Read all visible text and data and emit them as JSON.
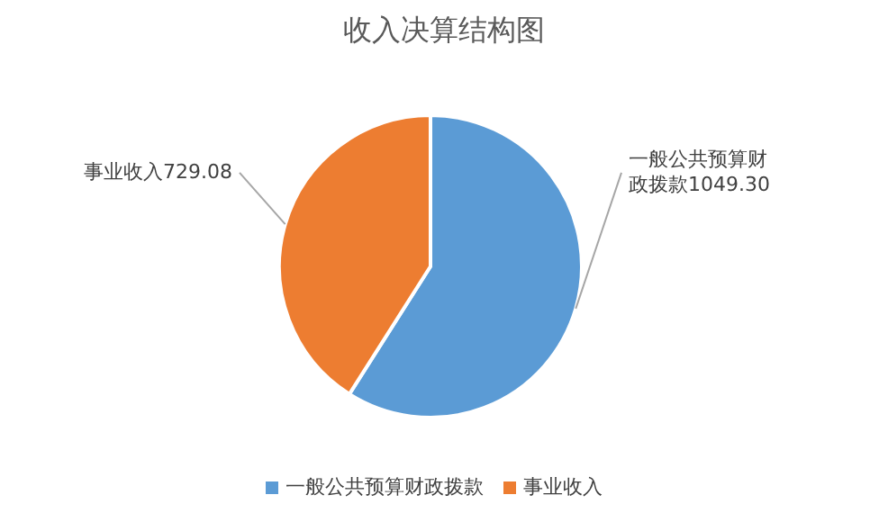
{
  "chart_data": {
    "type": "pie",
    "title": "收入决算结构图",
    "categories": [
      "一般公共预算财政拨款",
      "事业收入"
    ],
    "values": [
      1049.3,
      729.08
    ],
    "value_labels": [
      "一般公共预算财政拨款1049.30",
      "事业收入729.08"
    ],
    "colors": [
      "#5b9bd5",
      "#ed7d31"
    ],
    "legend": "bottom"
  }
}
